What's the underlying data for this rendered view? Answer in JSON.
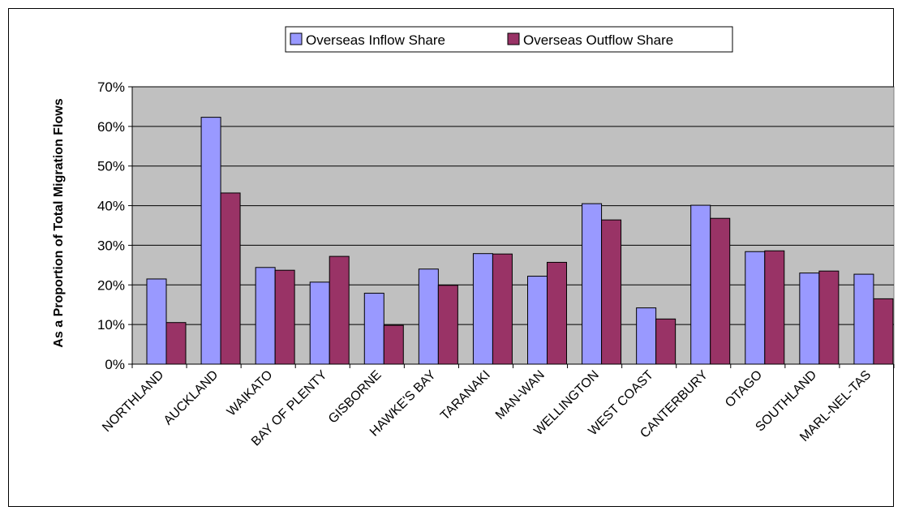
{
  "chart_data": {
    "type": "bar",
    "title": "",
    "xlabel": "",
    "ylabel": "As a Proportion of Total Migration Flows",
    "ylim": [
      0,
      0.7
    ],
    "yticks": [
      0,
      0.1,
      0.2,
      0.3,
      0.4,
      0.5,
      0.6,
      0.7
    ],
    "ytick_labels": [
      "0%",
      "10%",
      "20%",
      "30%",
      "40%",
      "50%",
      "60%",
      "70%"
    ],
    "grid": true,
    "legend_position": "top-center",
    "plot_background": "#c0c0c0",
    "categories": [
      "NORTHLAND",
      "AUCKLAND",
      "WAIKATO",
      "BAY OF PLENTY",
      "GISBORNE",
      "HAWKE'S BAY",
      "TARANAKI",
      "MAN-WAN",
      "WELLINGTON",
      "WEST COAST",
      "CANTERBURY",
      "OTAGO",
      "SOUTHLAND",
      "MARL-NEL-TAS"
    ],
    "series": [
      {
        "name": "Overseas Inflow Share",
        "color": "#9999ff",
        "values": [
          0.215,
          0.623,
          0.244,
          0.207,
          0.179,
          0.24,
          0.279,
          0.222,
          0.405,
          0.142,
          0.401,
          0.284,
          0.23,
          0.227
        ]
      },
      {
        "name": "Overseas Outflow Share",
        "color": "#993366",
        "values": [
          0.105,
          0.432,
          0.237,
          0.272,
          0.098,
          0.199,
          0.278,
          0.257,
          0.364,
          0.114,
          0.368,
          0.286,
          0.235,
          0.165
        ]
      }
    ]
  }
}
